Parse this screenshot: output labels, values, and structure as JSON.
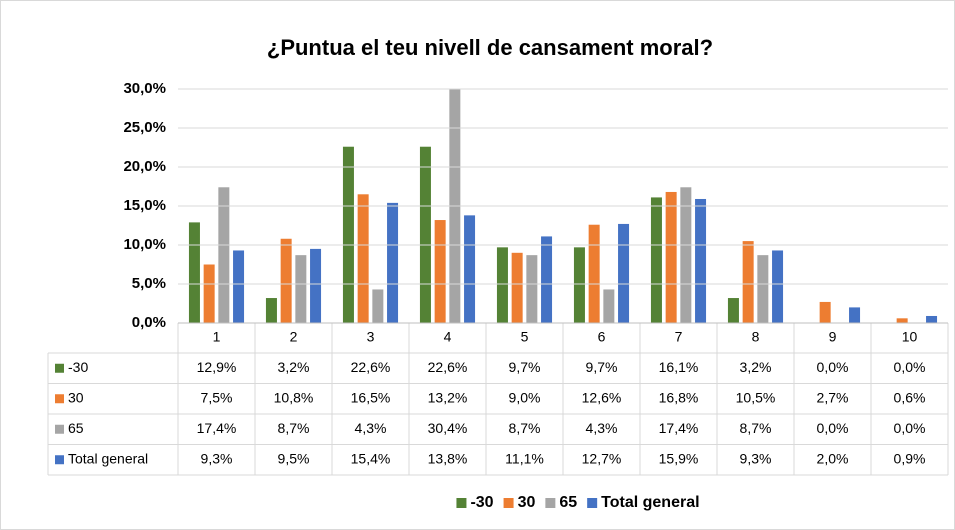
{
  "chart_data": {
    "type": "bar",
    "title": "¿Puntua el teu nivell de cansament moral?",
    "categories": [
      "1",
      "2",
      "3",
      "4",
      "5",
      "6",
      "7",
      "8",
      "9",
      "10"
    ],
    "series": [
      {
        "name": "-30",
        "color": "#548235",
        "values": [
          12.9,
          3.2,
          22.6,
          22.6,
          9.7,
          9.7,
          16.1,
          3.2,
          0.0,
          0.0
        ],
        "value_labels": [
          "12,9%",
          "3,2%",
          "22,6%",
          "22,6%",
          "9,7%",
          "9,7%",
          "16,1%",
          "3,2%",
          "0,0%",
          "0,0%"
        ]
      },
      {
        "name": "30",
        "color": "#ed7d31",
        "values": [
          7.5,
          10.8,
          16.5,
          13.2,
          9.0,
          12.6,
          16.8,
          10.5,
          2.7,
          0.6
        ],
        "value_labels": [
          "7,5%",
          "10,8%",
          "16,5%",
          "13,2%",
          "9,0%",
          "12,6%",
          "16,8%",
          "10,5%",
          "2,7%",
          "0,6%"
        ]
      },
      {
        "name": "65",
        "color": "#a5a5a5",
        "values": [
          17.4,
          8.7,
          4.3,
          30.4,
          8.7,
          4.3,
          17.4,
          8.7,
          0.0,
          0.0
        ],
        "value_labels": [
          "17,4%",
          "8,7%",
          "4,3%",
          "30,4%",
          "8,7%",
          "4,3%",
          "17,4%",
          "8,7%",
          "0,0%",
          "0,0%"
        ]
      },
      {
        "name": "Total general",
        "color": "#4472c4",
        "values": [
          9.3,
          9.5,
          15.4,
          13.8,
          11.1,
          12.7,
          15.9,
          9.3,
          2.0,
          0.9
        ],
        "value_labels": [
          "9,3%",
          "9,5%",
          "15,4%",
          "13,8%",
          "11,1%",
          "12,7%",
          "15,9%",
          "9,3%",
          "2,0%",
          "0,9%"
        ]
      }
    ],
    "ylim": [
      0,
      30
    ],
    "yticks": [
      {
        "value": 0,
        "label": "0,0%"
      },
      {
        "value": 5,
        "label": "5,0%"
      },
      {
        "value": 10,
        "label": "10,0%"
      },
      {
        "value": 15,
        "label": "15,0%"
      },
      {
        "value": 20,
        "label": "20,0%"
      },
      {
        "value": 25,
        "label": "25,0%"
      },
      {
        "value": 30,
        "label": "30,0%"
      }
    ],
    "grid": true,
    "legend": "bottom"
  }
}
